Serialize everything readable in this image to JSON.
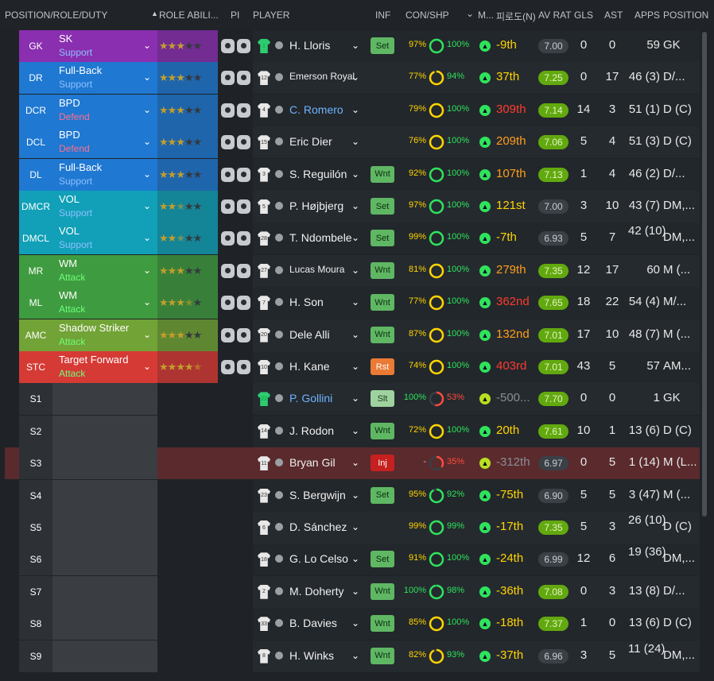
{
  "headers": {
    "position_role_duty": "POSITION/ROLE/DUTY",
    "role_ability": "ROLE ABILI...",
    "pi": "PI",
    "player": "PLAYER",
    "inf": "INF",
    "con_shp": "CON/SHP",
    "m": "M...",
    "form": "피로도(N)",
    "av_rat": "AV RAT",
    "gls": "GLS",
    "ast": "AST",
    "apps": "APPS",
    "position": "POSITION"
  },
  "colors": {
    "gk": "#8a2fb0",
    "defence": "#1f78d1",
    "dm": "#11a0b7",
    "mid": "#3f9b3f",
    "amc": "#72a336",
    "stc": "#d63a35",
    "sub": "#34383d",
    "support": "#8fc0ff",
    "defend": "#ff6f8e",
    "attack": "#6dff7a"
  },
  "rows": [
    {
      "pos": "GK",
      "role": "SK",
      "duty": "Support",
      "stars": 3,
      "shirt": "1",
      "name": "H. Lloris",
      "inf": "Set",
      "con": "97%",
      "shp": "100%",
      "rank": "-9th",
      "rank_color": "#ffd400",
      "avr": "7.00",
      "gls": "0",
      "ast": "0",
      "apps": "59",
      "position": "GK",
      "group": "gk"
    },
    {
      "pos": "DR",
      "role": "Full-Back",
      "duty": "Support",
      "stars": 3,
      "shirt": "12",
      "name": "Emerson Royal",
      "inf": "",
      "con": "77%",
      "shp": "94%",
      "rank": "37th",
      "rank_color": "#ffd400",
      "avr": "7.25",
      "gls": "0",
      "ast": "17",
      "apps": "46 (3)",
      "position": "D/...",
      "group": "defence"
    },
    {
      "pos": "DCR",
      "role": "BPD",
      "duty": "Defend",
      "stars": 3,
      "shirt": "4",
      "name": "C. Romero",
      "inf": "",
      "con": "79%",
      "shp": "100%",
      "rank": "309th",
      "rank_color": "#ff3b30",
      "avr": "7.14",
      "gls": "14",
      "ast": "3",
      "apps": "51 (1)",
      "position": "D (C)",
      "group": "defence"
    },
    {
      "pos": "DCL",
      "role": "BPD",
      "duty": "Defend",
      "stars": 3,
      "shirt": "15",
      "name": "Eric Dier",
      "inf": "",
      "con": "76%",
      "shp": "100%",
      "rank": "209th",
      "rank_color": "#ff9f1a",
      "avr": "7.06",
      "gls": "5",
      "ast": "4",
      "apps": "51 (3)",
      "position": "D (C)",
      "group": "defence"
    },
    {
      "pos": "DL",
      "role": "Full-Back",
      "duty": "Support",
      "stars": 3,
      "shirt": "3",
      "name": "S. Reguilón",
      "inf": "Wnt",
      "con": "92%",
      "shp": "100%",
      "rank": "107th",
      "rank_color": "#ff9f1a",
      "avr": "7.13",
      "gls": "1",
      "ast": "4",
      "apps": "46 (2)",
      "position": "D/...",
      "group": "defence"
    },
    {
      "pos": "DMCR",
      "role": "VOL",
      "duty": "Support",
      "stars": 2.5,
      "shirt": "5",
      "name": "P. Højbjerg",
      "inf": "Set",
      "con": "97%",
      "shp": "100%",
      "rank": "121st",
      "rank_color": "#ffd400",
      "avr": "7.00",
      "gls": "3",
      "ast": "10",
      "apps": "43 (7)",
      "position": "DM,...",
      "group": "dm"
    },
    {
      "pos": "DMCL",
      "role": "VOL",
      "duty": "Support",
      "stars": 2.5,
      "shirt": "28",
      "name": "T. Ndombele",
      "inf": "Set",
      "con": "99%",
      "shp": "100%",
      "rank": "-7th",
      "rank_color": "#ffd400",
      "avr": "6.93",
      "gls": "5",
      "ast": "7",
      "apps": "42 (10)",
      "position": "DM,...",
      "group": "dm"
    },
    {
      "pos": "MR",
      "role": "WM",
      "duty": "Attack",
      "stars": 3,
      "shirt": "27",
      "name": "Lucas Moura",
      "inf": "Wnt",
      "con": "81%",
      "shp": "100%",
      "rank": "279th",
      "rank_color": "#ff9f1a",
      "avr": "7.35",
      "gls": "12",
      "ast": "17",
      "apps": "60",
      "position": "M (...",
      "group": "mid"
    },
    {
      "pos": "ML",
      "role": "WM",
      "duty": "Attack",
      "stars": 3.5,
      "shirt": "7",
      "name": "H. Son",
      "inf": "Wnt",
      "con": "77%",
      "shp": "100%",
      "rank": "362nd",
      "rank_color": "#ff3b30",
      "avr": "7.65",
      "gls": "18",
      "ast": "22",
      "apps": "54 (4)",
      "position": "M/...",
      "group": "mid"
    },
    {
      "pos": "AMC",
      "role": "Shadow Striker",
      "duty": "Attack",
      "stars": 3,
      "shirt": "20",
      "name": "Dele Alli",
      "inf": "Wnt",
      "con": "87%",
      "shp": "100%",
      "rank": "132nd",
      "rank_color": "#ff9f1a",
      "avr": "7.01",
      "gls": "17",
      "ast": "10",
      "apps": "48 (7)",
      "position": "M (...",
      "group": "amc"
    },
    {
      "pos": "STC",
      "role": "Target Forward",
      "duty": "Attack",
      "stars": 4.5,
      "shirt": "10",
      "name": "H. Kane",
      "inf": "Rst",
      "con": "74%",
      "shp": "100%",
      "rank": "403rd",
      "rank_color": "#ff3b30",
      "avr": "7.01",
      "gls": "43",
      "ast": "5",
      "apps": "57",
      "position": "AM...",
      "group": "stc"
    },
    {
      "pos": "S1",
      "role": "",
      "duty": "",
      "stars": 0,
      "shirt": "22",
      "name": "P. Gollini",
      "inf": "Slt",
      "con": "100%",
      "shp": "53%",
      "rank": "-500...",
      "rank_color": "#8a8f95",
      "avr": "7.70",
      "gls": "0",
      "ast": "0",
      "apps": "1",
      "position": "GK",
      "group": "sub"
    },
    {
      "pos": "S2",
      "role": "",
      "duty": "",
      "stars": 0,
      "shirt": "14",
      "name": "J. Rodon",
      "inf": "Wnt",
      "con": "72%",
      "shp": "100%",
      "rank": "20th",
      "rank_color": "#ffd400",
      "avr": "7.61",
      "gls": "10",
      "ast": "1",
      "apps": "13 (6)",
      "position": "D (C)",
      "group": "sub"
    },
    {
      "pos": "S3",
      "role": "",
      "duty": "",
      "stars": 0,
      "shirt": "11",
      "name": "Bryan Gil",
      "inf": "Inj",
      "con": "-",
      "shp": "35%",
      "rank": "-312th",
      "rank_color": "#8a8f95",
      "avr": "6.97",
      "gls": "0",
      "ast": "5",
      "apps": "1 (14)",
      "position": "M (L...",
      "group": "sub"
    },
    {
      "pos": "S4",
      "role": "",
      "duty": "",
      "stars": 0,
      "shirt": "23",
      "name": "S. Bergwijn",
      "inf": "Set",
      "con": "95%",
      "shp": "92%",
      "rank": "-75th",
      "rank_color": "#ffd400",
      "avr": "6.90",
      "gls": "5",
      "ast": "5",
      "apps": "3 (47)",
      "position": "M (...",
      "group": "sub"
    },
    {
      "pos": "S5",
      "role": "",
      "duty": "",
      "stars": 0,
      "shirt": "6",
      "name": "D. Sánchez",
      "inf": "",
      "con": "99%",
      "shp": "99%",
      "rank": "-17th",
      "rank_color": "#ffd400",
      "avr": "7.35",
      "gls": "5",
      "ast": "3",
      "apps": "26 (10)",
      "position": "D (C)",
      "group": "sub"
    },
    {
      "pos": "S6",
      "role": "",
      "duty": "",
      "stars": 0,
      "shirt": "18",
      "name": "G. Lo Celso",
      "inf": "Set",
      "con": "91%",
      "shp": "100%",
      "rank": "-24th",
      "rank_color": "#ffd400",
      "avr": "6.99",
      "gls": "12",
      "ast": "6",
      "apps": "19 (36)",
      "position": "DM,...",
      "group": "sub"
    },
    {
      "pos": "S7",
      "role": "",
      "duty": "",
      "stars": 0,
      "shirt": "2",
      "name": "M. Doherty",
      "inf": "Wnt",
      "con": "100%",
      "shp": "98%",
      "rank": "-36th",
      "rank_color": "#ffd400",
      "avr": "7.08",
      "gls": "0",
      "ast": "3",
      "apps": "13 (8)",
      "position": "D/...",
      "group": "sub"
    },
    {
      "pos": "S8",
      "role": "",
      "duty": "",
      "stars": 0,
      "shirt": "33",
      "name": "B. Davies",
      "inf": "Wnt",
      "con": "85%",
      "shp": "100%",
      "rank": "-18th",
      "rank_color": "#ffd400",
      "avr": "7.37",
      "gls": "1",
      "ast": "0",
      "apps": "13 (6)",
      "position": "D (C)",
      "group": "sub"
    },
    {
      "pos": "S9",
      "role": "",
      "duty": "",
      "stars": 0,
      "shirt": "8",
      "name": "H. Winks",
      "inf": "Wnt",
      "con": "82%",
      "shp": "93%",
      "rank": "-37th",
      "rank_color": "#ffd400",
      "avr": "6.96",
      "gls": "3",
      "ast": "5",
      "apps": "11 (24)",
      "position": "DM,...",
      "group": "sub"
    }
  ]
}
